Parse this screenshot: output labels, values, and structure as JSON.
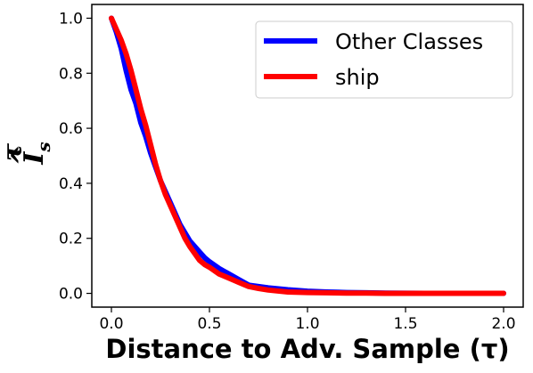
{
  "chart_data": {
    "type": "line",
    "xlabel": "Distance to Adv. Sample (τ)",
    "ylabel": {
      "base": "I",
      "hat": "^",
      "superscript": "τ",
      "subscript": "s"
    },
    "xlim": [
      -0.1,
      2.1
    ],
    "ylim": [
      -0.05,
      1.05
    ],
    "x_ticks": [
      "0.0",
      "0.5",
      "1.0",
      "1.5",
      "2.0"
    ],
    "y_ticks": [
      "0.0",
      "0.2",
      "0.4",
      "0.6",
      "0.8",
      "1.0"
    ],
    "grid": false,
    "legend_position": "upper right",
    "series": [
      {
        "name": "Other Classes",
        "color": "#0000ff",
        "x": [
          0.0,
          0.025,
          0.05,
          0.075,
          0.1,
          0.125,
          0.15,
          0.175,
          0.2,
          0.225,
          0.25,
          0.275,
          0.3,
          0.325,
          0.35,
          0.375,
          0.4,
          0.425,
          0.45,
          0.475,
          0.5,
          0.55,
          0.6,
          0.65,
          0.7,
          0.75,
          0.8,
          0.9,
          1.0,
          1.1,
          1.2,
          1.3,
          1.4,
          1.5,
          1.6,
          1.7,
          1.8,
          1.9,
          2.0
        ],
        "values": [
          1.0,
          0.95,
          0.89,
          0.81,
          0.74,
          0.69,
          0.62,
          0.57,
          0.51,
          0.46,
          0.41,
          0.37,
          0.33,
          0.29,
          0.25,
          0.22,
          0.19,
          0.17,
          0.15,
          0.13,
          0.115,
          0.09,
          0.07,
          0.05,
          0.03,
          0.025,
          0.02,
          0.013,
          0.008,
          0.005,
          0.003,
          0.002,
          0.001,
          0.0005,
          0.0003,
          0.0002,
          0.0001,
          0.0,
          0.0
        ]
      },
      {
        "name": "ship",
        "color": "#ff0000",
        "x": [
          0.0,
          0.025,
          0.05,
          0.075,
          0.1,
          0.125,
          0.15,
          0.175,
          0.2,
          0.225,
          0.25,
          0.275,
          0.3,
          0.325,
          0.35,
          0.375,
          0.4,
          0.425,
          0.45,
          0.475,
          0.5,
          0.55,
          0.6,
          0.65,
          0.7,
          0.75,
          0.8,
          0.9,
          1.0,
          1.1,
          1.2,
          1.3,
          1.4,
          1.5,
          1.6,
          1.7,
          1.8,
          1.9,
          2.0
        ],
        "values": [
          1.0,
          0.96,
          0.92,
          0.87,
          0.81,
          0.74,
          0.67,
          0.61,
          0.54,
          0.47,
          0.41,
          0.36,
          0.32,
          0.28,
          0.24,
          0.2,
          0.17,
          0.145,
          0.12,
          0.105,
          0.095,
          0.07,
          0.055,
          0.04,
          0.025,
          0.018,
          0.012,
          0.005,
          0.003,
          0.002,
          0.001,
          0.001,
          0.0,
          0.0,
          0.0,
          0.0,
          0.0,
          0.0,
          0.0
        ]
      }
    ]
  }
}
